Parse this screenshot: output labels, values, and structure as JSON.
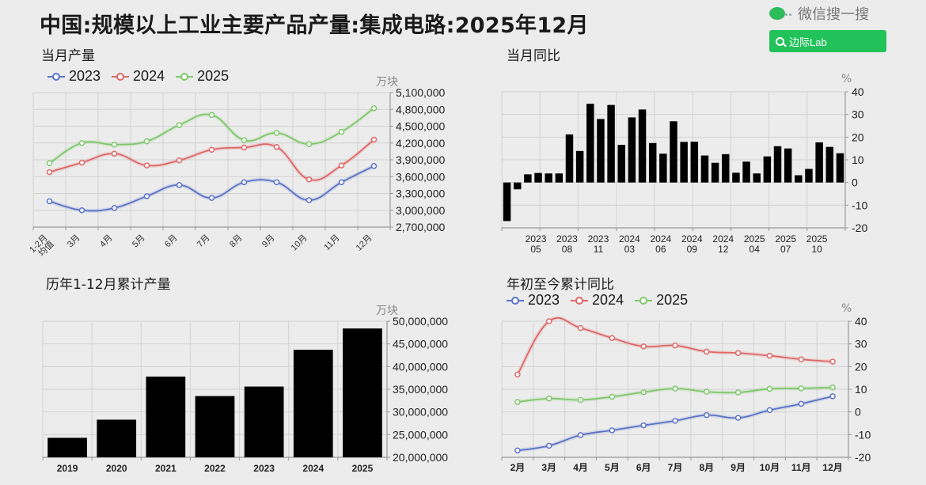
{
  "header": {
    "title": "中国:规模以上工业主要产品产量:集成电路:2025年12月"
  },
  "watermark": {
    "brand": "微信搜一搜",
    "search_label": "边际Lab",
    "search_icon": "search-icon",
    "logo_icon": "wechat-logo-icon",
    "accent_color": "#22c25a"
  },
  "legend": {
    "series": [
      {
        "label": "2023",
        "color": "#5b73c8"
      },
      {
        "label": "2024",
        "color": "#e06767"
      },
      {
        "label": "2025",
        "color": "#7ec86b"
      }
    ]
  },
  "chart_data": [
    {
      "id": "monthly_output",
      "type": "line",
      "title": "当月产量",
      "unit": "万块",
      "categories": [
        "1-2月均值",
        "3月",
        "4月",
        "5月",
        "6月",
        "7月",
        "8月",
        "9月",
        "10月",
        "11月",
        "12月"
      ],
      "series": [
        {
          "name": "2023",
          "color": "#5b73c8",
          "values": [
            3160000,
            3000000,
            3040000,
            3250000,
            3450000,
            3220000,
            3500000,
            3500000,
            3180000,
            3500000,
            3790000
          ]
        },
        {
          "name": "2024",
          "color": "#e06767",
          "values": [
            3680000,
            3850000,
            4010000,
            3800000,
            3890000,
            4080000,
            4120000,
            4130000,
            3550000,
            3800000,
            4260000
          ]
        },
        {
          "name": "2025",
          "color": "#7ec86b",
          "values": [
            3840000,
            4200000,
            4170000,
            4230000,
            4520000,
            4700000,
            4250000,
            4380000,
            4180000,
            4400000,
            4820000
          ]
        }
      ],
      "yticks": [
        "5,100,000",
        "4,800,000",
        "4,500,000",
        "4,200,000",
        "3,900,000",
        "3,600,000",
        "3,300,000",
        "3,000,000",
        "2,700,000"
      ],
      "ylim": [
        2700000,
        5100000
      ],
      "grid": true
    },
    {
      "id": "monthly_yoy",
      "type": "bar",
      "title": "当月同比",
      "unit": "%",
      "categories": [
        "2023-02",
        "2023-03",
        "2023-04",
        "2023-05",
        "2023-06",
        "2023-07",
        "2023-08",
        "2023-09",
        "2023-10",
        "2023-11",
        "2023-12",
        "2024-02",
        "2024-03",
        "2024-04",
        "2024-05",
        "2024-06",
        "2024-07",
        "2024-08",
        "2024-09",
        "2024-10",
        "2024-11",
        "2024-12",
        "2025-02",
        "2025-03",
        "2025-04",
        "2025-05",
        "2025-06",
        "2025-07",
        "2025-08",
        "2025-09",
        "2025-10",
        "2025-11",
        "2025-12"
      ],
      "values": [
        -17,
        -3,
        3.6,
        4.2,
        4.0,
        4.0,
        21.2,
        13.9,
        34.7,
        28.0,
        34.2,
        16.6,
        28.7,
        32.2,
        17.4,
        12.7,
        27.0,
        17.9,
        18.0,
        11.9,
        8.7,
        12.5,
        4.3,
        9.2,
        4.0,
        11.5,
        16.0,
        15.0,
        3.2,
        6.0,
        17.7,
        15.7,
        12.9
      ],
      "xtick_labels": [
        {
          "index": 3,
          "year": "2023",
          "month": "05"
        },
        {
          "index": 6,
          "year": "2023",
          "month": "08"
        },
        {
          "index": 9,
          "year": "2023",
          "month": "11"
        },
        {
          "index": 12,
          "year": "2024",
          "month": "03"
        },
        {
          "index": 15,
          "year": "2024",
          "month": "06"
        },
        {
          "index": 18,
          "year": "2024",
          "month": "09"
        },
        {
          "index": 21,
          "year": "2024",
          "month": "12"
        },
        {
          "index": 24,
          "year": "2025",
          "month": "04"
        },
        {
          "index": 27,
          "year": "2025",
          "month": "07"
        },
        {
          "index": 30,
          "year": "2025",
          "month": "10"
        }
      ],
      "yticks": [
        "40",
        "30",
        "20",
        "10",
        "0",
        "-10",
        "-20"
      ],
      "ylim": [
        -20,
        40
      ],
      "grid": true
    },
    {
      "id": "annual_cumulative",
      "type": "bar",
      "title": "历年1-12月累计产量",
      "unit": "万块",
      "categories": [
        "2019",
        "2020",
        "2021",
        "2022",
        "2023",
        "2024",
        "2025"
      ],
      "values": [
        24300000,
        28300000,
        37800000,
        33500000,
        35600000,
        43700000,
        48400000
      ],
      "yticks": [
        "50,000,000",
        "45,000,000",
        "40,000,000",
        "35,000,000",
        "30,000,000",
        "25,000,000",
        "20,000,000"
      ],
      "ylim": [
        20000000,
        50000000
      ],
      "grid": true
    },
    {
      "id": "ytd_yoy",
      "type": "line",
      "title": "年初至今累计同比",
      "unit": "%",
      "categories": [
        "2月",
        "3月",
        "4月",
        "5月",
        "6月",
        "7月",
        "8月",
        "9月",
        "10月",
        "11月",
        "12月"
      ],
      "series": [
        {
          "name": "2023",
          "color": "#5b73c8",
          "values": [
            -17,
            -14.9,
            -10.2,
            -8.1,
            -5.9,
            -3.9,
            -1.4,
            -2.6,
            0.8,
            3.6,
            6.9
          ]
        },
        {
          "name": "2024",
          "color": "#e06767",
          "values": [
            16.5,
            40.0,
            37.0,
            32.6,
            28.9,
            29.3,
            26.6,
            26.0,
            24.8,
            23.2,
            22.2
          ]
        },
        {
          "name": "2025",
          "color": "#7ec86b",
          "values": [
            4.4,
            5.9,
            5.3,
            6.7,
            8.7,
            10.3,
            8.9,
            8.6,
            10.2,
            10.4,
            10.8
          ]
        }
      ],
      "yticks": [
        "40",
        "30",
        "20",
        "10",
        "0",
        "-10",
        "-20"
      ],
      "ylim": [
        -20,
        40
      ],
      "grid": true
    }
  ]
}
